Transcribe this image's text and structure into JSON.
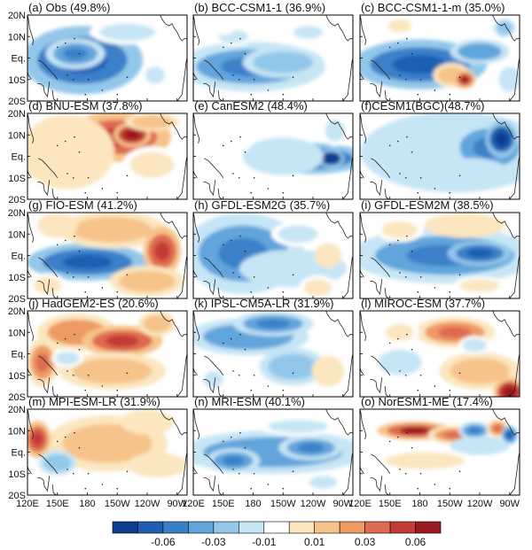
{
  "chart_data": {
    "type": "heatmap",
    "panel_grid": {
      "rows": 5,
      "cols": 3
    },
    "x_ticks": [
      "120E",
      "150E",
      "180",
      "150W",
      "120W",
      "90W"
    ],
    "y_ticks": [
      "20N",
      "10N",
      "Eq.",
      "10S",
      "20S"
    ],
    "xlim": [
      120,
      280
    ],
    "ylim": [
      -20,
      20
    ],
    "colorbar": {
      "tick_labels": [
        "-0.06",
        "-0.03",
        "-0.01",
        "0.01",
        "0.03",
        "0.06"
      ],
      "levels": [
        -0.06,
        -0.05,
        -0.04,
        -0.03,
        -0.02,
        -0.01,
        0.0,
        0.01,
        0.02,
        0.03,
        0.04,
        0.05,
        0.06
      ],
      "colors": [
        "#0b3d91",
        "#1f5fb3",
        "#3a80c8",
        "#62a4dc",
        "#93c7ea",
        "#c6e5f5",
        "#ffffff",
        "#fbe6c0",
        "#f6c48a",
        "#ee9a63",
        "#de6a4f",
        "#c33b36",
        "#98191f"
      ]
    },
    "panels": [
      {
        "title": "(a) Obs (49.8%)",
        "blobs": [
          {
            "lon": 175,
            "lat": -1,
            "rlon": 45,
            "rlat": 11,
            "value": -0.035
          },
          {
            "lon": 168,
            "lat": 2,
            "rlon": 22,
            "rlat": 5,
            "value": -0.03
          },
          {
            "lon": 220,
            "lat": 12,
            "rlon": 28,
            "rlat": 4,
            "value": -0.008
          },
          {
            "lon": 248,
            "lat": -8,
            "rlon": 10,
            "rlat": 4,
            "value": -0.006
          }
        ]
      },
      {
        "title": "(b) BCC-CSM1-1 (36.9%)",
        "blobs": [
          {
            "lon": 178,
            "lat": -4,
            "rlon": 55,
            "rlat": 8,
            "value": -0.03
          },
          {
            "lon": 210,
            "lat": -2,
            "rlon": 30,
            "rlat": 5,
            "value": -0.02
          },
          {
            "lon": 160,
            "lat": 10,
            "rlon": 15,
            "rlat": 3,
            "value": -0.01
          },
          {
            "lon": 235,
            "lat": 12,
            "rlon": 15,
            "rlat": 3,
            "value": -0.01
          },
          {
            "lon": 150,
            "lat": 15,
            "rlon": 10,
            "rlat": 3,
            "value": 0.005
          },
          {
            "lon": 255,
            "lat": -14,
            "rlon": 8,
            "rlat": 3,
            "value": 0.005
          }
        ]
      },
      {
        "title": "(c) BCC-CSM1-1-m (35.0%)",
        "blobs": [
          {
            "lon": 180,
            "lat": -3,
            "rlon": 50,
            "rlat": 8,
            "value": -0.035
          },
          {
            "lon": 212,
            "lat": -8,
            "rlon": 14,
            "rlat": 4,
            "value": 0.02
          },
          {
            "lon": 225,
            "lat": -10,
            "rlon": 8,
            "rlat": 3,
            "value": 0.045
          },
          {
            "lon": 240,
            "lat": 3,
            "rlon": 22,
            "rlat": 4,
            "value": -0.025
          },
          {
            "lon": 265,
            "lat": 14,
            "rlon": 8,
            "rlat": 3,
            "value": -0.02
          },
          {
            "lon": 270,
            "lat": -10,
            "rlon": 8,
            "rlat": 4,
            "value": -0.015
          },
          {
            "lon": 160,
            "lat": 15,
            "rlon": 12,
            "rlat": 3,
            "value": 0.008
          }
        ]
      },
      {
        "title": "(d) BNU-ESM (37.8%)",
        "blobs": [
          {
            "lon": 210,
            "lat": 9,
            "rlon": 40,
            "rlat": 8,
            "value": 0.035
          },
          {
            "lon": 225,
            "lat": 10,
            "rlon": 14,
            "rlat": 4,
            "value": 0.05
          },
          {
            "lon": 160,
            "lat": 2,
            "rlon": 35,
            "rlat": 12,
            "value": 0.015
          },
          {
            "lon": 245,
            "lat": -4,
            "rlon": 22,
            "rlat": 6,
            "value": 0.01
          },
          {
            "lon": 245,
            "lat": 16,
            "rlon": 20,
            "rlat": 3,
            "value": 0.02
          }
        ]
      },
      {
        "title": "(e) CanESM2 (48.4%)",
        "blobs": [
          {
            "lon": 238,
            "lat": -1,
            "rlon": 42,
            "rlat": 5,
            "value": -0.04
          },
          {
            "lon": 258,
            "lat": -1,
            "rlon": 10,
            "rlat": 3,
            "value": -0.055
          },
          {
            "lon": 210,
            "lat": 0,
            "rlon": 30,
            "rlat": 6,
            "value": -0.015
          },
          {
            "lon": 262,
            "lat": 12,
            "rlon": 10,
            "rlat": 5,
            "value": -0.01
          },
          {
            "lon": 160,
            "lat": 8,
            "rlon": 15,
            "rlat": 5,
            "value": 0.005
          }
        ]
      },
      {
        "title": "(f)CESM1(BGC)(48.7%)",
        "blobs": [
          {
            "lon": 215,
            "lat": 2,
            "rlon": 70,
            "rlat": 13,
            "value": -0.015
          },
          {
            "lon": 250,
            "lat": 4,
            "rlon": 30,
            "rlat": 9,
            "value": -0.03
          },
          {
            "lon": 262,
            "lat": 8,
            "rlon": 12,
            "rlat": 6,
            "value": -0.05
          },
          {
            "lon": 230,
            "lat": -8,
            "rlon": 30,
            "rlat": 5,
            "value": -0.015
          }
        ]
      },
      {
        "title": "(g) FIO-ESM (41.2%)",
        "blobs": [
          {
            "lon": 180,
            "lat": -3,
            "rlon": 45,
            "rlat": 6,
            "value": -0.035
          },
          {
            "lon": 205,
            "lat": 12,
            "rlon": 40,
            "rlat": 6,
            "value": 0.02
          },
          {
            "lon": 255,
            "lat": 2,
            "rlon": 14,
            "rlat": 8,
            "value": 0.04
          },
          {
            "lon": 240,
            "lat": -12,
            "rlon": 28,
            "rlat": 5,
            "value": 0.02
          },
          {
            "lon": 150,
            "lat": 14,
            "rlon": 15,
            "rlat": 4,
            "value": 0.015
          },
          {
            "lon": 140,
            "lat": -14,
            "rlon": 14,
            "rlat": 4,
            "value": 0.01
          }
        ]
      },
      {
        "title": "(h) GFDL-ESM2G (35.7%)",
        "blobs": [
          {
            "lon": 170,
            "lat": 1,
            "rlon": 45,
            "rlat": 13,
            "value": -0.03
          },
          {
            "lon": 220,
            "lat": -6,
            "rlon": 40,
            "rlat": 6,
            "value": -0.015
          },
          {
            "lon": 225,
            "lat": 10,
            "rlon": 20,
            "rlat": 4,
            "value": -0.01
          },
          {
            "lon": 255,
            "lat": 0,
            "rlon": 10,
            "rlat": 4,
            "value": 0.015
          },
          {
            "lon": 245,
            "lat": -15,
            "rlon": 14,
            "rlat": 4,
            "value": 0.008
          }
        ]
      },
      {
        "title": "(i) GFDL-ESM2M (38.5%)",
        "blobs": [
          {
            "lon": 205,
            "lat": 0,
            "rlon": 70,
            "rlat": 9,
            "value": -0.03
          },
          {
            "lon": 240,
            "lat": 1,
            "rlon": 24,
            "rlat": 4,
            "value": -0.04
          },
          {
            "lon": 225,
            "lat": 14,
            "rlon": 30,
            "rlat": 4,
            "value": 0.012
          },
          {
            "lon": 160,
            "lat": 12,
            "rlon": 18,
            "rlat": 4,
            "value": 0.01
          },
          {
            "lon": 240,
            "lat": -14,
            "rlon": 20,
            "rlat": 3,
            "value": 0.008
          }
        ]
      },
      {
        "title": "(j) HadGEM2-ES (20.6%)",
        "blobs": [
          {
            "lon": 170,
            "lat": 10,
            "rlon": 30,
            "rlat": 6,
            "value": 0.025
          },
          {
            "lon": 215,
            "lat": 6,
            "rlon": 30,
            "rlat": 5,
            "value": 0.035
          },
          {
            "lon": 205,
            "lat": -8,
            "rlon": 40,
            "rlat": 6,
            "value": 0.02
          },
          {
            "lon": 135,
            "lat": -4,
            "rlon": 12,
            "rlat": 8,
            "value": 0.03
          },
          {
            "lon": 250,
            "lat": 14,
            "rlon": 14,
            "rlat": 4,
            "value": 0.02
          },
          {
            "lon": 160,
            "lat": -2,
            "rlon": 12,
            "rlat": 3,
            "value": -0.01
          }
        ]
      },
      {
        "title": "(k) IPSL-CM5A-LR (31.9%)",
        "blobs": [
          {
            "lon": 175,
            "lat": 8,
            "rlon": 45,
            "rlat": 6,
            "value": -0.025
          },
          {
            "lon": 200,
            "lat": 14,
            "rlon": 30,
            "rlat": 4,
            "value": -0.03
          },
          {
            "lon": 220,
            "lat": -6,
            "rlon": 25,
            "rlat": 6,
            "value": -0.02
          },
          {
            "lon": 255,
            "lat": -8,
            "rlon": 12,
            "rlat": 5,
            "value": 0.015
          },
          {
            "lon": 140,
            "lat": -12,
            "rlon": 10,
            "rlat": 4,
            "value": -0.01
          }
        ]
      },
      {
        "title": "(l) MIROC-ESM (37.7%)",
        "blobs": [
          {
            "lon": 215,
            "lat": 10,
            "rlon": 30,
            "rlat": 5,
            "value": 0.03
          },
          {
            "lon": 240,
            "lat": -8,
            "rlon": 30,
            "rlat": 6,
            "value": 0.02
          },
          {
            "lon": 270,
            "lat": -18,
            "rlon": 12,
            "rlat": 5,
            "value": 0.055
          },
          {
            "lon": 160,
            "lat": -4,
            "rlon": 22,
            "rlat": 6,
            "value": -0.01
          },
          {
            "lon": 160,
            "lat": 10,
            "rlon": 14,
            "rlat": 4,
            "value": 0.01
          },
          {
            "lon": 235,
            "lat": 4,
            "rlon": 12,
            "rlat": 3,
            "value": -0.008
          }
        ]
      },
      {
        "title": "(m) MPI-ESM-LR (31.9%)",
        "blobs": [
          {
            "lon": 200,
            "lat": 4,
            "rlon": 45,
            "rlat": 9,
            "value": 0.02
          },
          {
            "lon": 130,
            "lat": 6,
            "rlon": 10,
            "rlat": 6,
            "value": 0.04
          },
          {
            "lon": 150,
            "lat": -5,
            "rlon": 14,
            "rlat": 4,
            "value": -0.02
          },
          {
            "lon": 250,
            "lat": -6,
            "rlon": 22,
            "rlat": 4,
            "value": 0.015
          },
          {
            "lon": 240,
            "lat": 14,
            "rlon": 20,
            "rlat": 4,
            "value": 0.012
          }
        ]
      },
      {
        "title": "(n) MRI-ESM (40.1%)",
        "blobs": [
          {
            "lon": 200,
            "lat": 0,
            "rlon": 70,
            "rlat": 7,
            "value": -0.025
          },
          {
            "lon": 238,
            "lat": 2,
            "rlon": 24,
            "rlat": 4,
            "value": -0.03
          },
          {
            "lon": 160,
            "lat": -4,
            "rlon": 20,
            "rlat": 4,
            "value": -0.03
          },
          {
            "lon": 225,
            "lat": 12,
            "rlon": 30,
            "rlat": 3,
            "value": -0.01
          },
          {
            "lon": 250,
            "lat": -14,
            "rlon": 14,
            "rlat": 3,
            "value": -0.008
          }
        ]
      },
      {
        "title": "(o) NorESM1-ME (17.4%)",
        "blobs": [
          {
            "lon": 175,
            "lat": 10,
            "rlon": 28,
            "rlat": 3,
            "value": 0.045
          },
          {
            "lon": 215,
            "lat": 8,
            "rlon": 20,
            "rlat": 3,
            "value": 0.03
          },
          {
            "lon": 235,
            "lat": 10,
            "rlon": 12,
            "rlat": 3,
            "value": -0.03
          },
          {
            "lon": 258,
            "lat": 11,
            "rlon": 8,
            "rlat": 3,
            "value": 0.03
          },
          {
            "lon": 270,
            "lat": 8,
            "rlon": 6,
            "rlat": 3,
            "value": -0.04
          },
          {
            "lon": 185,
            "lat": -4,
            "rlon": 40,
            "rlat": 4,
            "value": 0.01
          },
          {
            "lon": 240,
            "lat": 3,
            "rlon": 22,
            "rlat": 3,
            "value": -0.012
          }
        ]
      }
    ]
  }
}
